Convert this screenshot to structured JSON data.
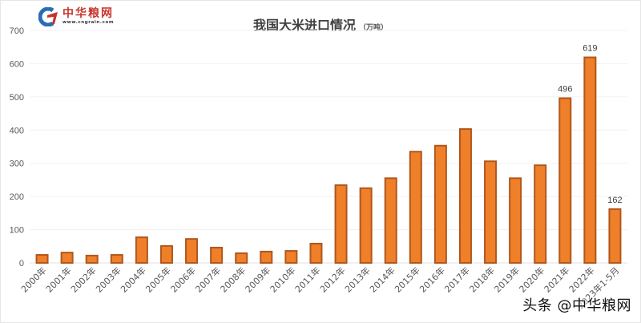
{
  "logo": {
    "name": "中华粮网",
    "url": "www.cngrain.com"
  },
  "title": {
    "main": "我国大米进口情况",
    "unit": "（万吨）"
  },
  "watermark": "头条 @中华粮网",
  "colors": {
    "bar_fill": "#F07F2A",
    "bar_stroke": "#B0571C",
    "grid": "#f0f0f0",
    "axis_text": "#595959",
    "label_text": "#404040"
  },
  "chart_data": {
    "type": "bar",
    "title": "我国大米进口情况（万吨）",
    "xlabel": "",
    "ylabel": "万吨",
    "ylim": [
      0,
      700
    ],
    "yticks": [
      0,
      100,
      200,
      300,
      400,
      500,
      600,
      700
    ],
    "grid": true,
    "legend": null,
    "categories": [
      "2000年",
      "2001年",
      "2002年",
      "2003年",
      "2004年",
      "2005年",
      "2006年",
      "2007年",
      "2008年",
      "2009年",
      "2010年",
      "2011年",
      "2012年",
      "2013年",
      "2014年",
      "2015年",
      "2016年",
      "2017年",
      "2018年",
      "2019年",
      "2020年",
      "2021年",
      "2022年",
      "2023年1-5月"
    ],
    "values": [
      24,
      31,
      22,
      24,
      77,
      51,
      72,
      46,
      29,
      34,
      36,
      58,
      234,
      225,
      255,
      335,
      353,
      403,
      306,
      255,
      294,
      496,
      619,
      162
    ],
    "data_labels": {
      "2021年": "496",
      "2022年": "619",
      "2023年1-5月": "162"
    }
  }
}
